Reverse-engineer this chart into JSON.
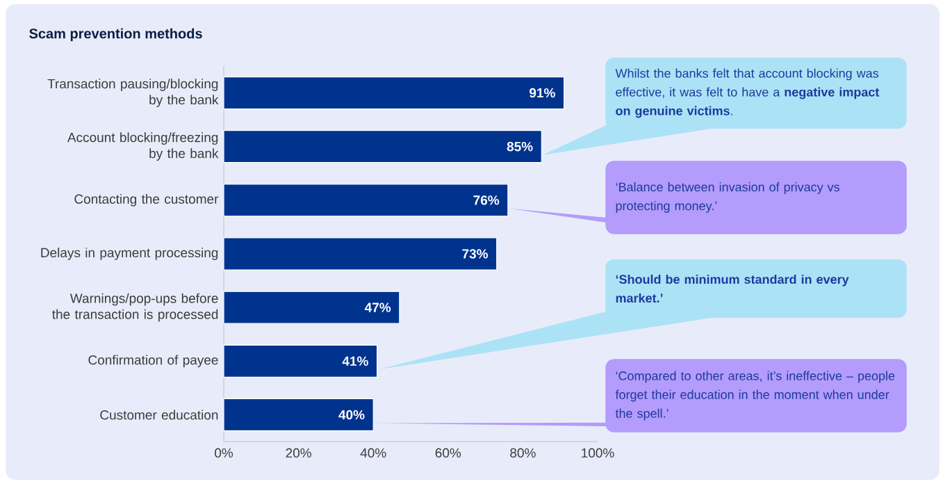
{
  "chart_data": {
    "type": "bar",
    "orientation": "horizontal",
    "title": "Scam prevention methods",
    "categories": [
      "Transaction pausing/blocking by the bank",
      "Account blocking/freezing by the bank",
      "Contacting the customer",
      "Delays in payment processing",
      "Warnings/pop-ups before the transaction is processed",
      "Confirmation of payee",
      "Customer education"
    ],
    "values": [
      91,
      85,
      76,
      73,
      47,
      41,
      40
    ],
    "value_labels": [
      "91%",
      "85%",
      "76%",
      "73%",
      "47%",
      "41%",
      "40%"
    ],
    "color": "#00338d",
    "xlim": [
      0,
      100
    ],
    "xticks": [
      {
        "value": 0,
        "label": "0%"
      },
      {
        "value": 20,
        "label": "20%"
      },
      {
        "value": 40,
        "label": "40%"
      },
      {
        "value": 60,
        "label": "60%"
      },
      {
        "value": 80,
        "label": "80%"
      },
      {
        "value": 100,
        "label": "100%"
      }
    ],
    "annotations": [
      "Whilst the banks felt that account blocking was effective, it was felt to have a **negative impact on genuine victims**.",
      "‘Balance between invasion of privacy vs protecting money.’",
      "**‘Should be minimum standard in every market.’**",
      "‘Compared to other areas, it’s ineffective – people forget their education in the moment when under the spell.’"
    ]
  }
}
